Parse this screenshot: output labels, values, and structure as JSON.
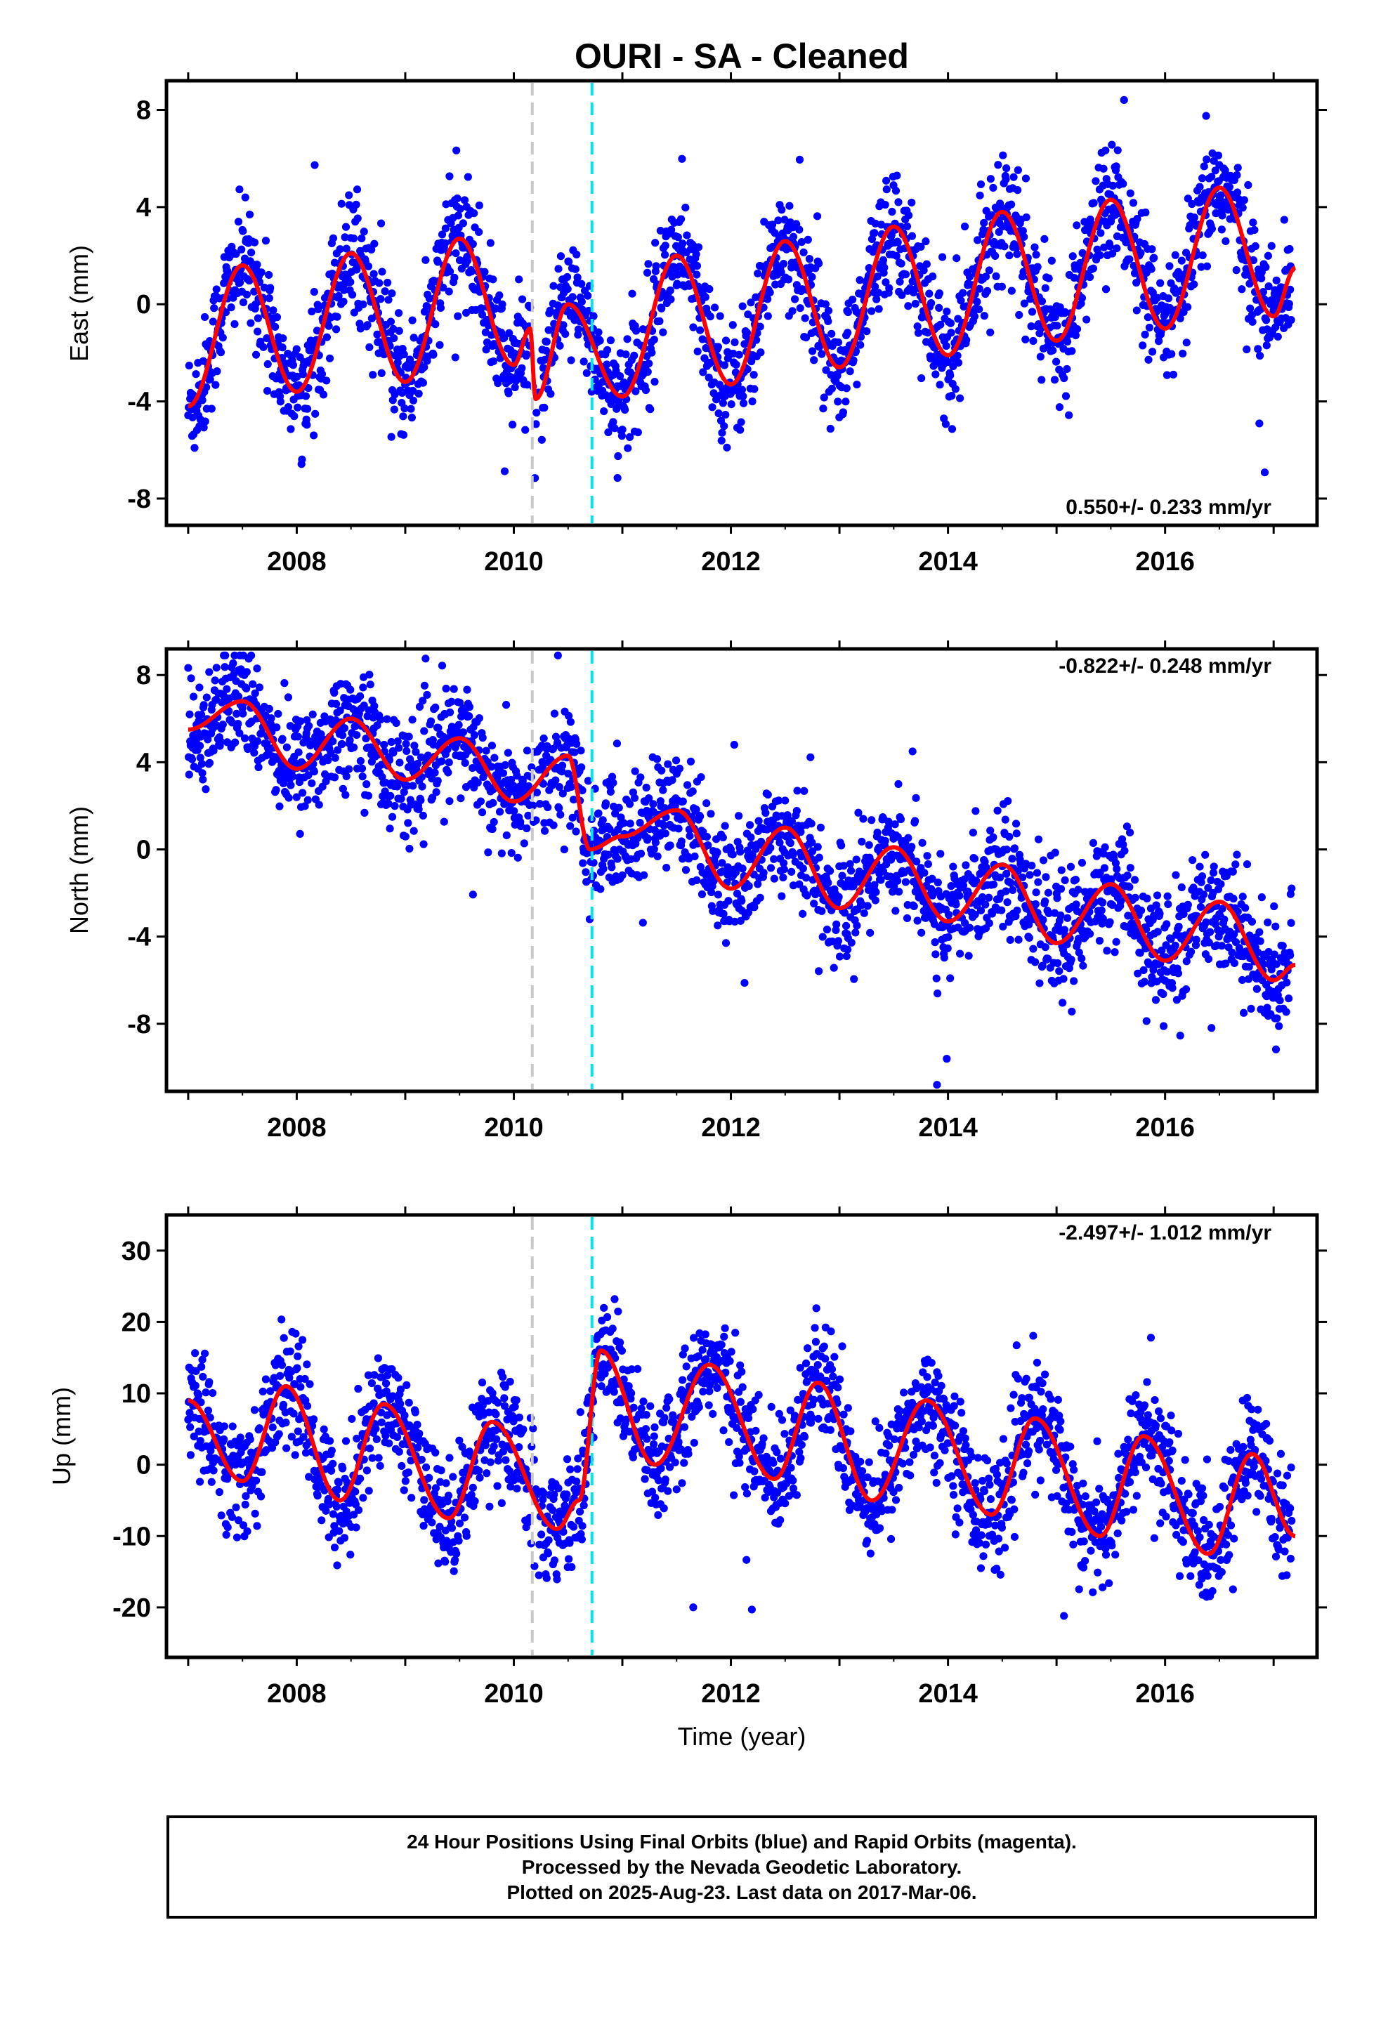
{
  "page_title": "OURI  - SA - Cleaned",
  "colors": {
    "final_orbit_points": "#0000ff",
    "model_fit": "#ff0000",
    "marker_gray": "#c8c8c8",
    "marker_cyan": "#00e5ee"
  },
  "chart_data": [
    {
      "type": "scatter",
      "title": "OURI  - SA - Cleaned",
      "xlabel": "",
      "ylabel": "East (mm)",
      "xlim": [
        2006.8,
        2017.4
      ],
      "ylim": [
        -9.1,
        9.2
      ],
      "yticks": [
        "8",
        "4",
        "0",
        "-4",
        "-8"
      ],
      "xticks": [
        "2008",
        "2010",
        "2012",
        "2014",
        "2016"
      ],
      "grid": false,
      "annotation": "0.550+/- 0.233 mm/yr",
      "annotation_position": "bottom-right",
      "vertical_markers": [
        {
          "x": 2010.17,
          "style": "gray-dashed"
        },
        {
          "x": 2010.72,
          "style": "cyan-dashed"
        }
      ],
      "series": [
        {
          "style": "points",
          "description_values": {
            "trend_mm_per_yr": 0.55,
            "annual_amplitude_mm": 3.0,
            "scatter_mm": 1.2
          }
        },
        {
          "style": "red-line",
          "fit_points": [
            [
              2007.0,
              -4.2
            ],
            [
              2007.5,
              1.6
            ],
            [
              2008.0,
              -3.6
            ],
            [
              2008.5,
              2.1
            ],
            [
              2009.0,
              -3.2
            ],
            [
              2009.5,
              2.7
            ],
            [
              2010.0,
              -2.5
            ],
            [
              2010.15,
              -1.0
            ],
            [
              2010.2,
              -3.9
            ],
            [
              2010.5,
              0.0
            ],
            [
              2011.0,
              -3.8
            ],
            [
              2011.5,
              2.0
            ],
            [
              2012.0,
              -3.3
            ],
            [
              2012.5,
              2.6
            ],
            [
              2013.0,
              -2.6
            ],
            [
              2013.5,
              3.2
            ],
            [
              2014.0,
              -2.1
            ],
            [
              2014.5,
              3.8
            ],
            [
              2015.0,
              -1.5
            ],
            [
              2015.5,
              4.3
            ],
            [
              2016.0,
              -1.0
            ],
            [
              2016.5,
              4.8
            ],
            [
              2017.0,
              -0.5
            ],
            [
              2017.2,
              1.5
            ]
          ]
        }
      ]
    },
    {
      "type": "scatter",
      "xlabel": "",
      "ylabel": "North (mm)",
      "xlim": [
        2006.8,
        2017.4
      ],
      "ylim": [
        -11.1,
        9.2
      ],
      "yticks": [
        "8",
        "4",
        "0",
        "-4",
        "-8"
      ],
      "xticks": [
        "2008",
        "2010",
        "2012",
        "2014",
        "2016"
      ],
      "grid": false,
      "annotation": "-0.822+/- 0.248 mm/yr",
      "annotation_position": "top-right",
      "vertical_markers": [
        {
          "x": 2010.17,
          "style": "gray-dashed"
        },
        {
          "x": 2010.72,
          "style": "cyan-dashed"
        }
      ],
      "series": [
        {
          "style": "points",
          "description_values": {
            "trend_mm_per_yr": -0.822,
            "annual_amplitude_mm": 1.6,
            "scatter_mm": 1.3
          }
        },
        {
          "style": "red-line",
          "fit_points": [
            [
              2007.0,
              5.5
            ],
            [
              2007.5,
              6.8
            ],
            [
              2008.0,
              3.7
            ],
            [
              2008.5,
              6.0
            ],
            [
              2009.0,
              3.2
            ],
            [
              2009.5,
              5.1
            ],
            [
              2010.0,
              2.2
            ],
            [
              2010.5,
              4.3
            ],
            [
              2010.7,
              0.0
            ],
            [
              2011.0,
              0.6
            ],
            [
              2011.5,
              1.8
            ],
            [
              2012.0,
              -1.8
            ],
            [
              2012.5,
              1.0
            ],
            [
              2013.0,
              -2.7
            ],
            [
              2013.5,
              0.1
            ],
            [
              2014.0,
              -3.3
            ],
            [
              2014.5,
              -0.7
            ],
            [
              2015.0,
              -4.3
            ],
            [
              2015.5,
              -1.6
            ],
            [
              2016.0,
              -5.1
            ],
            [
              2016.5,
              -2.4
            ],
            [
              2017.0,
              -6.0
            ],
            [
              2017.2,
              -5.3
            ]
          ]
        }
      ]
    },
    {
      "type": "scatter",
      "xlabel": "Time (year)",
      "ylabel": "Up (mm)",
      "xlim": [
        2006.8,
        2017.4
      ],
      "ylim": [
        -27,
        35
      ],
      "yticks": [
        "30",
        "20",
        "10",
        "0",
        "-10",
        "-20"
      ],
      "xticks": [
        "2008",
        "2010",
        "2012",
        "2014",
        "2016"
      ],
      "grid": false,
      "annotation": "-2.497+/- 1.012 mm/yr",
      "annotation_position": "top-right",
      "vertical_markers": [
        {
          "x": 2010.17,
          "style": "gray-dashed"
        },
        {
          "x": 2010.72,
          "style": "cyan-dashed"
        }
      ],
      "series": [
        {
          "style": "points",
          "description_values": {
            "trend_mm_per_yr": -2.497,
            "annual_amplitude_mm": 8.5,
            "scatter_mm": 4.0
          }
        },
        {
          "style": "red-line",
          "fit_points": [
            [
              2007.0,
              9.0
            ],
            [
              2007.5,
              -2.3
            ],
            [
              2007.9,
              11.0
            ],
            [
              2008.4,
              -5.0
            ],
            [
              2008.8,
              8.5
            ],
            [
              2009.4,
              -7.5
            ],
            [
              2009.8,
              6.0
            ],
            [
              2010.4,
              -9.0
            ],
            [
              2010.6,
              -5.0
            ],
            [
              2010.8,
              16.0
            ],
            [
              2011.3,
              0.0
            ],
            [
              2011.8,
              14.0
            ],
            [
              2012.4,
              -2.0
            ],
            [
              2012.8,
              11.5
            ],
            [
              2013.3,
              -5.0
            ],
            [
              2013.8,
              9.0
            ],
            [
              2014.4,
              -7.0
            ],
            [
              2014.8,
              6.5
            ],
            [
              2015.4,
              -10.0
            ],
            [
              2015.8,
              4.0
            ],
            [
              2016.4,
              -12.5
            ],
            [
              2016.8,
              1.5
            ],
            [
              2017.2,
              -10.0
            ]
          ]
        }
      ]
    }
  ],
  "footer": {
    "line1": "24 Hour Positions Using Final Orbits (blue) and Rapid Orbits (magenta).",
    "line2": "Processed by the Nevada Geodetic Laboratory.",
    "line3": "Plotted on 2025-Aug-23. Last data on 2017-Mar-06."
  }
}
